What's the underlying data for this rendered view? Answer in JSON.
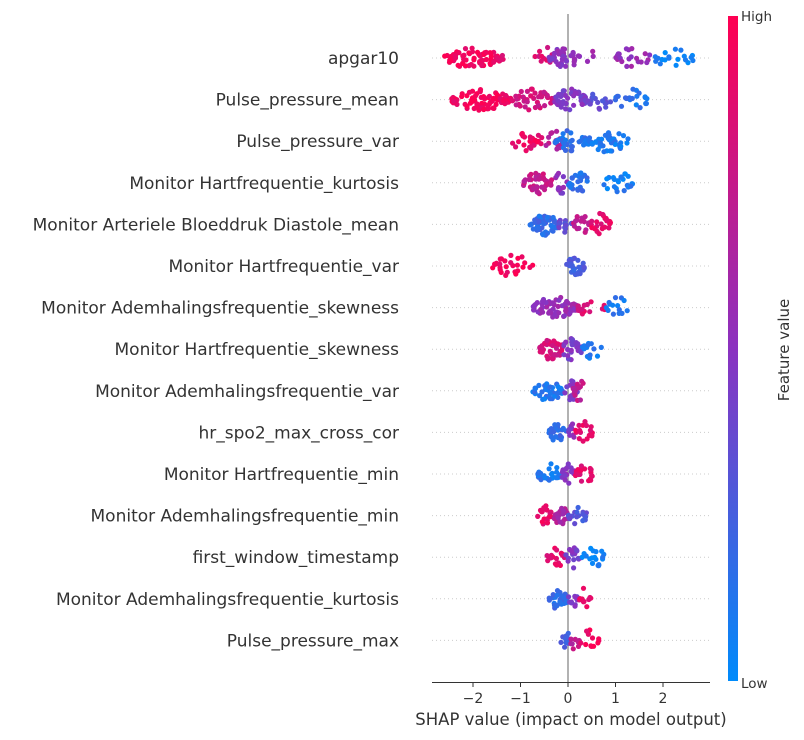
{
  "chart_data": {
    "type": "scatter",
    "subtype": "beeswarm",
    "title": "",
    "xlabel": "SHAP value (impact on model output)",
    "ylabel": "",
    "xlim": [
      -2.85,
      3.0
    ],
    "xticks": [
      -2,
      -1,
      0,
      1,
      2
    ],
    "grid": false,
    "colorbar": {
      "label": "Feature value",
      "high_label": "High",
      "low_label": "Low",
      "high_color": "#ff0052",
      "mid_color": "#8b32c0",
      "low_color": "#008bfb"
    },
    "features": [
      {
        "name": "apgar10",
        "clusters": [
          {
            "x_min": -2.6,
            "x_max": -1.4,
            "color": 0.95,
            "count": 70
          },
          {
            "x_min": -1.35,
            "x_max": -1.45,
            "color": 0.9,
            "count": 3
          },
          {
            "x_min": -0.7,
            "x_max": -0.2,
            "color": 0.85,
            "count": 12
          },
          {
            "x_min": -0.4,
            "x_max": 0.25,
            "color": 0.5,
            "count": 38
          },
          {
            "x_min": 0.4,
            "x_max": 0.6,
            "color": 0.6,
            "count": 3
          },
          {
            "x_min": 1.0,
            "x_max": 1.75,
            "color": 0.55,
            "count": 22
          },
          {
            "x_min": 1.8,
            "x_max": 2.7,
            "color": 0.05,
            "count": 20
          }
        ]
      },
      {
        "name": "Pulse_pressure_mean",
        "clusters": [
          {
            "x_min": -2.5,
            "x_max": -1.2,
            "color": 0.95,
            "count": 85
          },
          {
            "x_min": -1.2,
            "x_max": -0.3,
            "color": 0.8,
            "count": 45
          },
          {
            "x_min": -0.3,
            "x_max": 0.4,
            "color": 0.45,
            "count": 45
          },
          {
            "x_min": 0.4,
            "x_max": 1.0,
            "color": 0.35,
            "count": 18
          },
          {
            "x_min": 1.0,
            "x_max": 1.7,
            "color": 0.12,
            "count": 22
          }
        ]
      },
      {
        "name": "Pulse_pressure_var",
        "clusters": [
          {
            "x_min": -1.2,
            "x_max": -0.5,
            "color": 0.92,
            "count": 24
          },
          {
            "x_min": -0.5,
            "x_max": -0.1,
            "color": 0.7,
            "count": 14
          },
          {
            "x_min": -0.3,
            "x_max": 0.4,
            "color": 0.15,
            "count": 34
          },
          {
            "x_min": 0.4,
            "x_max": 1.3,
            "color": 0.1,
            "count": 42
          }
        ]
      },
      {
        "name": "Monitor Hartfrequentie_kurtosis",
        "clusters": [
          {
            "x_min": -0.95,
            "x_max": -0.3,
            "color": 0.75,
            "count": 40
          },
          {
            "x_min": -0.3,
            "x_max": 0.0,
            "color": 0.5,
            "count": 12
          },
          {
            "x_min": 0.0,
            "x_max": 0.45,
            "color": 0.15,
            "count": 24
          },
          {
            "x_min": 0.7,
            "x_max": 1.4,
            "color": 0.08,
            "count": 24
          }
        ]
      },
      {
        "name": "Monitor Arteriele Bloeddruk Diastole_mean",
        "clusters": [
          {
            "x_min": -0.8,
            "x_max": -0.2,
            "color": 0.18,
            "count": 50
          },
          {
            "x_min": -0.2,
            "x_max": 0.1,
            "color": 0.35,
            "count": 14
          },
          {
            "x_min": 0.1,
            "x_max": 0.45,
            "color": 0.75,
            "count": 16
          },
          {
            "x_min": 0.45,
            "x_max": 0.9,
            "color": 0.9,
            "count": 22
          }
        ]
      },
      {
        "name": "Monitor Hartfrequentie_var",
        "clusters": [
          {
            "x_min": -1.6,
            "x_max": -0.7,
            "color": 0.95,
            "count": 28
          },
          {
            "x_min": -0.05,
            "x_max": 0.35,
            "color": 0.25,
            "count": 30
          }
        ]
      },
      {
        "name": "Monitor Ademhalingsfrequentie_skewness",
        "clusters": [
          {
            "x_min": -0.75,
            "x_max": 0.2,
            "color": 0.55,
            "count": 70
          },
          {
            "x_min": 0.2,
            "x_max": 0.8,
            "color": 0.85,
            "count": 16
          },
          {
            "x_min": 0.8,
            "x_max": 1.35,
            "color": 0.1,
            "count": 14
          }
        ]
      },
      {
        "name": "Monitor Hartfrequentie_skewness",
        "clusters": [
          {
            "x_min": -0.6,
            "x_max": -0.1,
            "color": 0.8,
            "count": 38
          },
          {
            "x_min": -0.15,
            "x_max": 0.3,
            "color": 0.45,
            "count": 24
          },
          {
            "x_min": 0.3,
            "x_max": 0.75,
            "color": 0.1,
            "count": 14
          }
        ]
      },
      {
        "name": "Monitor Ademhalingsfrequentie_var",
        "clusters": [
          {
            "x_min": -0.75,
            "x_max": -0.1,
            "color": 0.12,
            "count": 40
          },
          {
            "x_min": -0.1,
            "x_max": 0.2,
            "color": 0.45,
            "count": 16
          },
          {
            "x_min": 0.1,
            "x_max": 0.4,
            "color": 0.72,
            "count": 14
          }
        ]
      },
      {
        "name": "hr_spo2_max_cross_cor",
        "clusters": [
          {
            "x_min": -0.4,
            "x_max": 0.0,
            "color": 0.2,
            "count": 26
          },
          {
            "x_min": 0.0,
            "x_max": 0.15,
            "color": 0.5,
            "count": 8
          },
          {
            "x_min": 0.15,
            "x_max": 0.55,
            "color": 0.9,
            "count": 18
          }
        ]
      },
      {
        "name": "Monitor Hartfrequentie_min",
        "clusters": [
          {
            "x_min": -0.65,
            "x_max": -0.15,
            "color": 0.12,
            "count": 28
          },
          {
            "x_min": -0.15,
            "x_max": 0.15,
            "color": 0.5,
            "count": 18
          },
          {
            "x_min": 0.15,
            "x_max": 0.55,
            "color": 0.9,
            "count": 22
          }
        ]
      },
      {
        "name": "Monitor Ademhalingsfrequentie_min",
        "clusters": [
          {
            "x_min": -0.65,
            "x_max": -0.3,
            "color": 0.9,
            "count": 18
          },
          {
            "x_min": -0.3,
            "x_max": 0.0,
            "color": 0.65,
            "count": 22
          },
          {
            "x_min": 0.0,
            "x_max": 0.4,
            "color": 0.3,
            "count": 22
          }
        ]
      },
      {
        "name": "first_window_timestamp",
        "clusters": [
          {
            "x_min": -0.45,
            "x_max": -0.05,
            "color": 0.88,
            "count": 24
          },
          {
            "x_min": -0.05,
            "x_max": 0.3,
            "color": 0.45,
            "count": 16
          },
          {
            "x_min": 0.3,
            "x_max": 0.8,
            "color": 0.06,
            "count": 18
          }
        ]
      },
      {
        "name": "Monitor Ademhalingsfrequentie_kurtosis",
        "clusters": [
          {
            "x_min": -0.4,
            "x_max": 0.0,
            "color": 0.18,
            "count": 30
          },
          {
            "x_min": 0.0,
            "x_max": 0.2,
            "color": 0.45,
            "count": 10
          },
          {
            "x_min": 0.2,
            "x_max": 0.5,
            "color": 0.9,
            "count": 10
          }
        ]
      },
      {
        "name": "Pulse_pressure_max",
        "clusters": [
          {
            "x_min": -0.15,
            "x_max": 0.05,
            "color": 0.25,
            "count": 12
          },
          {
            "x_min": 0.05,
            "x_max": 0.25,
            "color": 0.7,
            "count": 10
          },
          {
            "x_min": 0.25,
            "x_max": 0.65,
            "color": 0.95,
            "count": 12
          }
        ]
      }
    ]
  }
}
